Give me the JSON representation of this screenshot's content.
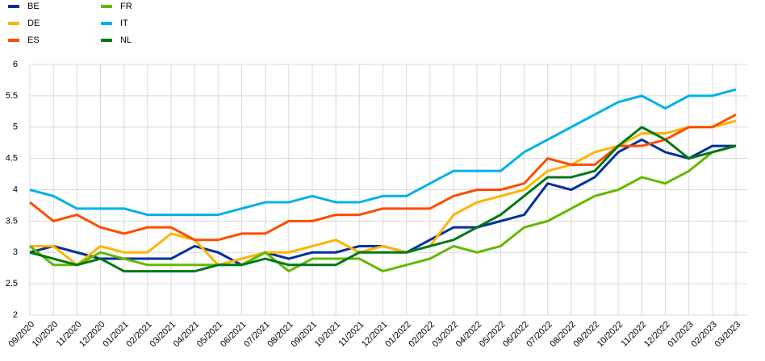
{
  "chart_data": {
    "type": "line",
    "categories": [
      "09/2020",
      "10/2020",
      "11/2020",
      "12/2020",
      "01/2021",
      "02/2021",
      "03/2021",
      "04/2021",
      "05/2021",
      "06/2021",
      "07/2021",
      "08/2021",
      "09/2021",
      "10/2021",
      "11/2021",
      "12/2021",
      "01/2022",
      "02/2022",
      "03/2022",
      "04/2022",
      "05/2022",
      "06/2022",
      "07/2022",
      "08/2022",
      "09/2022",
      "10/2022",
      "11/2022",
      "12/2022",
      "01/2023",
      "02/2023",
      "03/2023"
    ],
    "series": [
      {
        "name": "BE",
        "color": "#003299",
        "values": [
          3.0,
          3.1,
          3.0,
          2.9,
          2.9,
          2.9,
          2.9,
          3.1,
          3.0,
          2.8,
          3.0,
          2.9,
          3.0,
          3.0,
          3.1,
          3.1,
          3.0,
          3.2,
          3.4,
          3.4,
          3.5,
          3.6,
          4.1,
          4.0,
          4.2,
          4.6,
          4.8,
          4.6,
          4.5,
          4.7,
          4.7
        ]
      },
      {
        "name": "DE",
        "color": "#ffb400",
        "values": [
          3.1,
          3.1,
          2.8,
          3.1,
          3.0,
          3.0,
          3.3,
          3.2,
          2.8,
          2.9,
          3.0,
          3.0,
          3.1,
          3.2,
          3.0,
          3.1,
          3.0,
          3.1,
          3.6,
          3.8,
          3.9,
          4.0,
          4.3,
          4.4,
          4.6,
          4.7,
          4.9,
          4.9,
          5.0,
          5.0,
          5.1
        ]
      },
      {
        "name": "ES",
        "color": "#ff4b00",
        "values": [
          3.8,
          3.5,
          3.6,
          3.4,
          3.3,
          3.4,
          3.4,
          3.2,
          3.2,
          3.3,
          3.3,
          3.5,
          3.5,
          3.6,
          3.6,
          3.7,
          3.7,
          3.7,
          3.9,
          4.0,
          4.0,
          4.1,
          4.5,
          4.4,
          4.4,
          4.7,
          4.7,
          4.8,
          5.0,
          5.0,
          5.2
        ]
      },
      {
        "name": "FR",
        "color": "#65b800",
        "values": [
          3.1,
          2.8,
          2.8,
          3.0,
          2.9,
          2.8,
          2.8,
          2.8,
          2.8,
          2.8,
          3.0,
          2.7,
          2.9,
          2.9,
          2.9,
          2.7,
          2.8,
          2.9,
          3.1,
          3.0,
          3.1,
          3.4,
          3.5,
          3.7,
          3.9,
          4.0,
          4.2,
          4.1,
          4.3,
          4.6,
          4.7
        ]
      },
      {
        "name": "IT",
        "color": "#00b1ea",
        "values": [
          4.0,
          3.9,
          3.7,
          3.7,
          3.7,
          3.6,
          3.6,
          3.6,
          3.6,
          3.7,
          3.8,
          3.8,
          3.9,
          3.8,
          3.8,
          3.9,
          3.9,
          4.1,
          4.3,
          4.3,
          4.3,
          4.6,
          4.8,
          5.0,
          5.2,
          5.4,
          5.5,
          5.3,
          5.5,
          5.5,
          5.6
        ]
      },
      {
        "name": "NL",
        "color": "#007816",
        "values": [
          3.0,
          2.9,
          2.8,
          2.9,
          2.7,
          2.7,
          2.7,
          2.7,
          2.8,
          2.8,
          2.9,
          2.8,
          2.8,
          2.8,
          3.0,
          3.0,
          3.0,
          3.1,
          3.2,
          3.4,
          3.6,
          3.9,
          4.2,
          4.2,
          4.3,
          4.7,
          5.0,
          4.8,
          4.5,
          4.6,
          4.7
        ]
      }
    ],
    "ylim": [
      2,
      6
    ],
    "yticks": [
      2,
      2.5,
      3,
      3.5,
      4,
      4.5,
      5,
      5.5,
      6
    ],
    "grid": true
  }
}
